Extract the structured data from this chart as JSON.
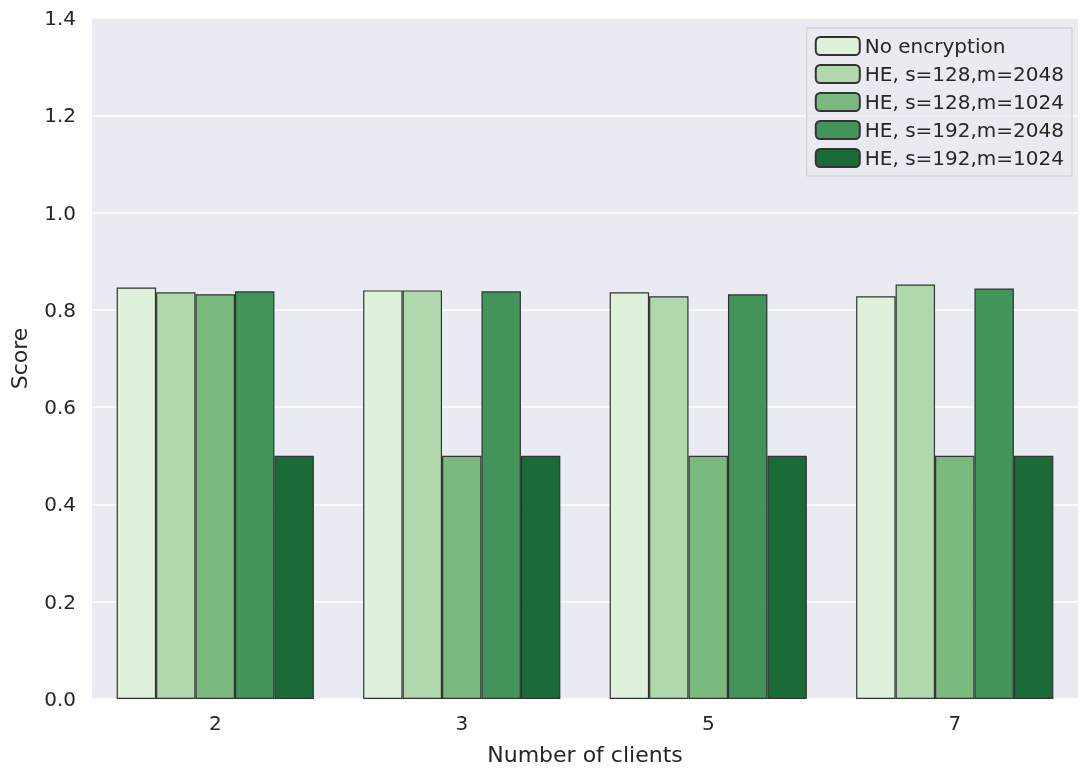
{
  "chart_data": {
    "type": "bar",
    "xlabel": "Number of clients",
    "ylabel": "Score",
    "categories": [
      "2",
      "3",
      "5",
      "7"
    ],
    "series": [
      {
        "name": "No encryption",
        "color": "#dff1da",
        "values": [
          0.846,
          0.84,
          0.836,
          0.828
        ]
      },
      {
        "name": "HE, s=128,m=2048",
        "color": "#b1d8ac",
        "values": [
          0.836,
          0.84,
          0.828,
          0.852
        ]
      },
      {
        "name": "HE, s=128,m=1024",
        "color": "#7aba7e",
        "values": [
          0.832,
          0.5,
          0.5,
          0.5
        ]
      },
      {
        "name": "HE, s=192,m=2048",
        "color": "#43945a",
        "values": [
          0.838,
          0.838,
          0.832,
          0.844
        ]
      },
      {
        "name": "HE, s=192,m=1024",
        "color": "#1a6b37",
        "values": [
          0.5,
          0.5,
          0.5,
          0.5
        ]
      }
    ],
    "ylim": [
      0,
      1.4
    ],
    "yticks": [
      {
        "value": 0,
        "label": "0.0"
      },
      0.2,
      0.4,
      0.6,
      0.8,
      {
        "value": 1,
        "label": "1.0"
      },
      1.2,
      1.4
    ],
    "grid": "y",
    "legend": "top right"
  }
}
